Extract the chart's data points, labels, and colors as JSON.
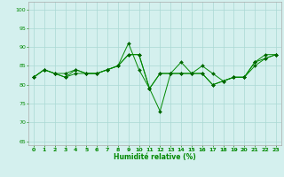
{
  "title": "",
  "xlabel": "Humidité relative (%)",
  "ylabel": "",
  "background_color": "#d4f0ee",
  "grid_color": "#aad8d4",
  "line_color": "#008800",
  "marker_color": "#006600",
  "ylim": [
    64,
    102
  ],
  "yticks": [
    65,
    70,
    75,
    80,
    85,
    90,
    95,
    100
  ],
  "xlim": [
    -0.5,
    23.5
  ],
  "xticks": [
    0,
    1,
    2,
    3,
    4,
    5,
    6,
    7,
    8,
    9,
    10,
    11,
    12,
    13,
    14,
    15,
    16,
    17,
    18,
    19,
    20,
    21,
    22,
    23
  ],
  "series": [
    [
      82,
      84,
      83,
      82,
      84,
      83,
      83,
      84,
      85,
      88,
      88,
      79,
      73,
      83,
      86,
      83,
      83,
      80,
      81,
      82,
      82,
      86,
      87,
      88
    ],
    [
      82,
      84,
      83,
      82,
      83,
      83,
      83,
      84,
      85,
      88,
      88,
      79,
      83,
      83,
      83,
      83,
      85,
      83,
      81,
      82,
      82,
      85,
      87,
      88
    ],
    [
      82,
      84,
      83,
      83,
      84,
      83,
      83,
      84,
      85,
      91,
      84,
      79,
      83,
      83,
      83,
      83,
      83,
      80,
      81,
      82,
      82,
      86,
      88,
      88
    ]
  ]
}
